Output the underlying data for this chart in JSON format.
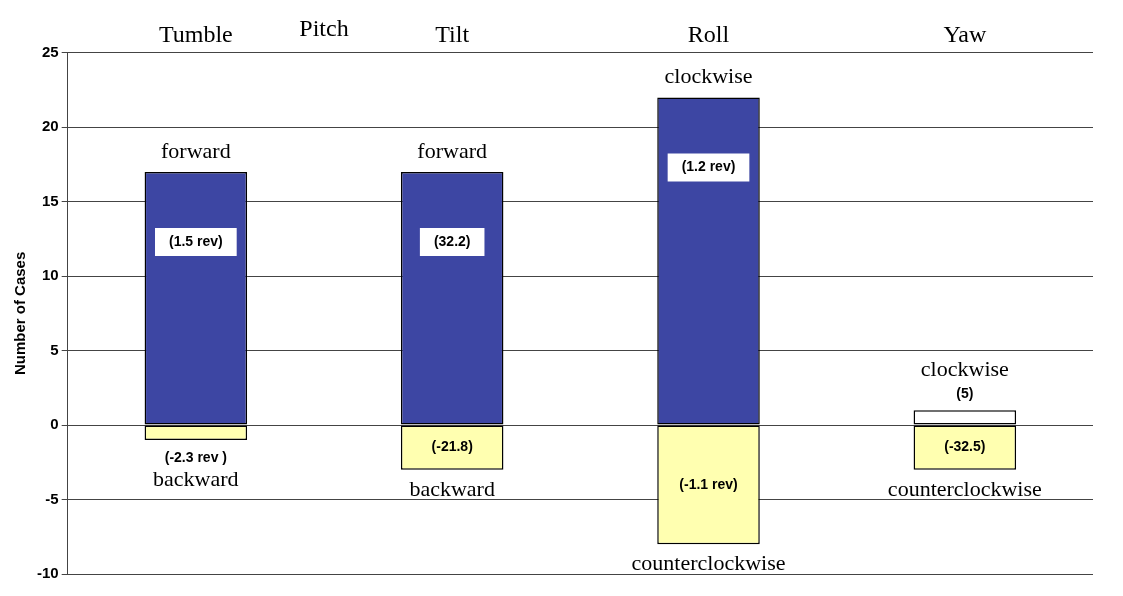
{
  "chart_data": {
    "type": "bar",
    "stacked": true,
    "ylabel": "Number of Cases",
    "categories": [
      "Tumble",
      "Tilt",
      "Roll",
      "Yaw"
    ],
    "series": [
      {
        "values": [
          17,
          17,
          22,
          1
        ],
        "colors": [
          "#3d46a3",
          "#3d46a3",
          "#3d46a3",
          "#ffffff"
        ]
      },
      {
        "values": [
          -1,
          -3,
          -8,
          -3
        ],
        "color": "#ffffb0"
      }
    ],
    "ylim": [
      -10,
      25
    ],
    "yticks": [
      -10,
      -5,
      0,
      5,
      10,
      15,
      20,
      25
    ],
    "grid": "y",
    "annotations": [
      "Pitch",
      {
        "text": "forward",
        "x": "Tumble",
        "y": 17
      },
      "(1.5 rev)",
      "(-2.3 rev )",
      {
        "text": "backward",
        "x": "Tumble",
        "y": -1
      },
      {
        "text": "forward",
        "x": "Tilt",
        "y": 17
      },
      "(32.2)",
      "(-21.8)",
      {
        "text": "backward",
        "x": "Tilt",
        "y": -3
      },
      {
        "text": "clockwise",
        "x": "Roll",
        "y": 22
      },
      "(1.2 rev)",
      "(-1.1 rev)",
      {
        "text": "counterclockwise",
        "x": "Roll",
        "y": -8
      },
      {
        "text": "clockwise",
        "x": "Yaw",
        "y": 1
      },
      "(5)",
      "(-32.5)",
      {
        "text": "counterclockwise",
        "x": "Yaw",
        "y": -3
      }
    ]
  }
}
